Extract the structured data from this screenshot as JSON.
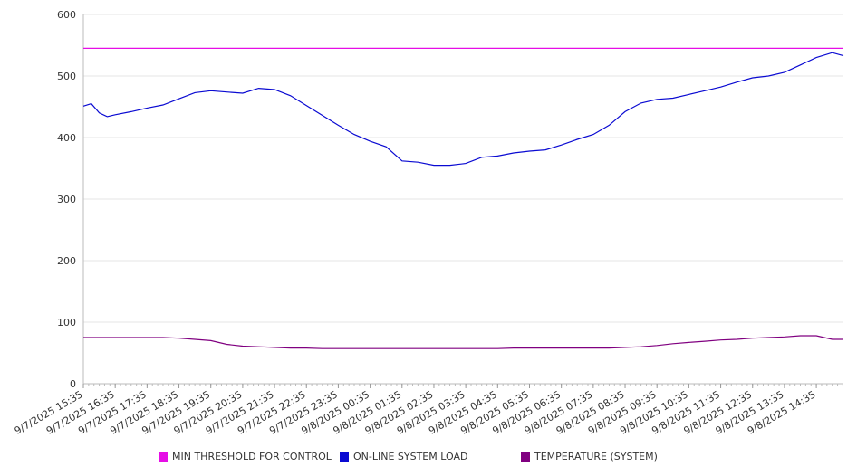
{
  "chart_data": {
    "type": "line",
    "ylim": [
      0,
      600
    ],
    "yticks": [
      0,
      100,
      200,
      300,
      400,
      500,
      600
    ],
    "x_tick_labels": [
      "9/7/2025 15:35",
      "9/7/2025 16:35",
      "9/7/2025 17:35",
      "9/7/2025 18:35",
      "9/7/2025 19:35",
      "9/7/2025 20:35",
      "9/7/2025 21:35",
      "9/7/2025 22:35",
      "9/7/2025 23:35",
      "9/8/2025 00:35",
      "9/8/2025 01:35",
      "9/8/2025 02:35",
      "9/8/2025 03:35",
      "9/8/2025 04:35",
      "9/8/2025 05:35",
      "9/8/2025 06:35",
      "9/8/2025 07:35",
      "9/8/2025 08:35",
      "9/8/2025 09:35",
      "9/8/2025 10:35",
      "9/8/2025 11:35",
      "9/8/2025 12:35",
      "9/8/2025 13:35",
      "9/8/2025 14:35"
    ],
    "x_hours": [
      0,
      0.25,
      0.5,
      0.75,
      1,
      1.5,
      2,
      2.5,
      3,
      3.5,
      4,
      4.5,
      5,
      5.5,
      6,
      6.5,
      7,
      7.5,
      8,
      8.5,
      9,
      9.5,
      10,
      10.5,
      11,
      11.5,
      12,
      12.5,
      13,
      13.5,
      14,
      14.5,
      15,
      15.5,
      16,
      16.5,
      17,
      17.5,
      18,
      18.5,
      19,
      19.5,
      20,
      20.5,
      21,
      21.5,
      22,
      22.5,
      23,
      23.5,
      23.85
    ],
    "grid": true,
    "legend_position": "bottom",
    "series": [
      {
        "name": "MIN THRESHOLD FOR CONTROL",
        "color": "#e60ee6",
        "values": [
          545,
          545,
          545,
          545,
          545,
          545,
          545,
          545,
          545,
          545,
          545,
          545,
          545,
          545,
          545,
          545,
          545,
          545,
          545,
          545,
          545,
          545,
          545,
          545,
          545,
          545,
          545,
          545,
          545,
          545,
          545,
          545,
          545,
          545,
          545,
          545,
          545,
          545,
          545,
          545,
          545,
          545,
          545,
          545,
          545,
          545,
          545,
          545,
          545,
          545,
          545
        ]
      },
      {
        "name": "ON-LINE SYSTEM LOAD",
        "color": "#0a0ad2",
        "values": [
          451,
          455,
          440,
          434,
          437,
          442,
          448,
          453,
          463,
          473,
          476,
          474,
          472,
          480,
          478,
          468,
          452,
          436,
          420,
          405,
          394,
          385,
          362,
          360,
          355,
          355,
          358,
          368,
          370,
          375,
          378,
          380,
          388,
          397,
          405,
          420,
          442,
          456,
          462,
          464,
          470,
          476,
          482,
          490,
          497,
          500,
          506,
          518,
          530,
          538,
          533
        ]
      },
      {
        "name": "TEMPERATURE (SYSTEM)",
        "color": "#800080",
        "values": [
          75,
          75,
          75,
          75,
          75,
          75,
          75,
          75,
          74,
          72,
          70,
          64,
          61,
          60,
          59,
          58,
          58,
          57,
          57,
          57,
          57,
          57,
          57,
          57,
          57,
          57,
          57,
          57,
          57,
          58,
          58,
          58,
          58,
          58,
          58,
          58,
          59,
          60,
          62,
          65,
          67,
          69,
          71,
          72,
          74,
          75,
          76,
          78,
          78,
          72,
          72
        ]
      }
    ]
  }
}
